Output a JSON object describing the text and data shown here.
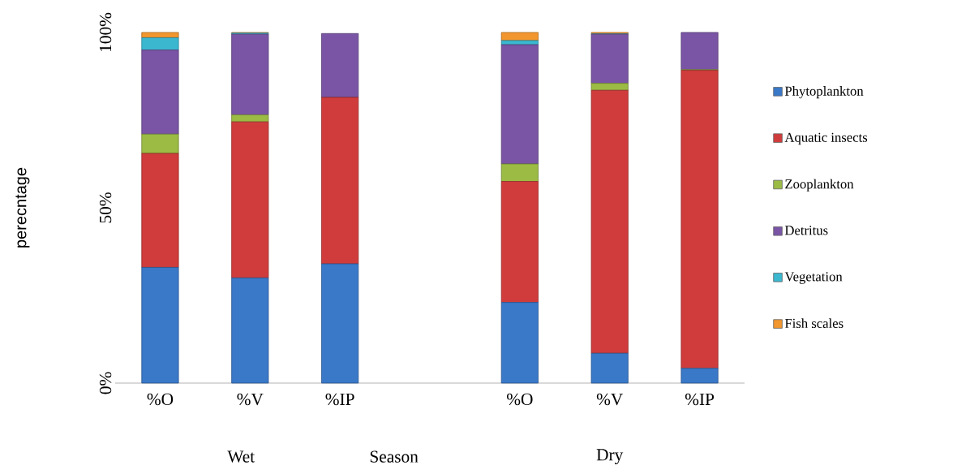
{
  "chart_data": {
    "type": "bar",
    "stacked": true,
    "ylabel": "perecntage",
    "categories": [
      "%O",
      "%V",
      "%IP",
      null,
      "%O",
      "%V",
      "%IP"
    ],
    "series": [
      {
        "name": "Phytoplankton",
        "color": "#3a78c8",
        "values": [
          33,
          30,
          34,
          null,
          23,
          8.5,
          4.2
        ]
      },
      {
        "name": "Aquatic insects",
        "color": "#d03c3c",
        "values": [
          32.5,
          44.5,
          47.5,
          null,
          34.5,
          75,
          85
        ]
      },
      {
        "name": "Zooplankton",
        "color": "#9bbb45",
        "values": [
          5.5,
          2,
          null,
          null,
          5,
          2,
          0.2
        ]
      },
      {
        "name": "Detritus",
        "color": "#7a55a5",
        "values": [
          24,
          23,
          18.2,
          null,
          34,
          14,
          10.6
        ]
      },
      {
        "name": "Vegetation",
        "color": "#3bb8d0",
        "values": [
          3.5,
          0.3,
          0,
          null,
          1.2,
          0.1,
          0
        ]
      },
      {
        "name": "Fish scales",
        "color": "#f2962e",
        "values": [
          1.5,
          0.2,
          0,
          null,
          2.3,
          0.4,
          0
        ]
      }
    ],
    "ylim": [
      0,
      100
    ],
    "yticks": [
      {
        "value": 0,
        "label": "0%"
      },
      {
        "value": 50,
        "label": "50%"
      },
      {
        "value": 100,
        "label": "100%"
      }
    ],
    "legend": "right",
    "annotations": [
      "Wet",
      "Season",
      "Dry"
    ]
  }
}
